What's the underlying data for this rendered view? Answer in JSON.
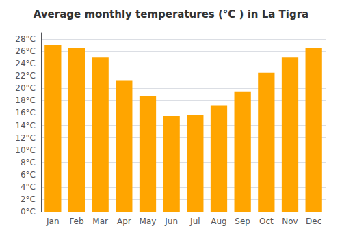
{
  "chart_data": {
    "type": "bar",
    "title": "Average monthly temperatures (°C ) in La Tigra",
    "categories": [
      "Jan",
      "Feb",
      "Mar",
      "Apr",
      "May",
      "Jun",
      "Jul",
      "Aug",
      "Sep",
      "Oct",
      "Nov",
      "Dec"
    ],
    "values": [
      27.0,
      26.5,
      25.0,
      21.3,
      18.7,
      15.5,
      15.7,
      17.2,
      19.5,
      22.5,
      25.0,
      26.5
    ],
    "color": "#FFA500",
    "ylim": [
      0,
      29
    ],
    "yticks": [
      {
        "value": 0,
        "label": "0°C"
      },
      {
        "value": 2,
        "label": "2°C"
      },
      {
        "value": 4,
        "label": "4°C"
      },
      {
        "value": 6,
        "label": "6°C"
      },
      {
        "value": 8,
        "label": "8°C"
      },
      {
        "value": 10,
        "label": "10°C"
      },
      {
        "value": 12,
        "label": "12°C"
      },
      {
        "value": 14,
        "label": "14°C"
      },
      {
        "value": 16,
        "label": "16°C"
      },
      {
        "value": 18,
        "label": "18°C"
      },
      {
        "value": 20,
        "label": "20°C"
      },
      {
        "value": 22,
        "label": "22°C"
      },
      {
        "value": 24,
        "label": "24°C"
      },
      {
        "value": 26,
        "label": "26°C"
      },
      {
        "value": 28,
        "label": "28°C"
      }
    ],
    "grid": true
  }
}
